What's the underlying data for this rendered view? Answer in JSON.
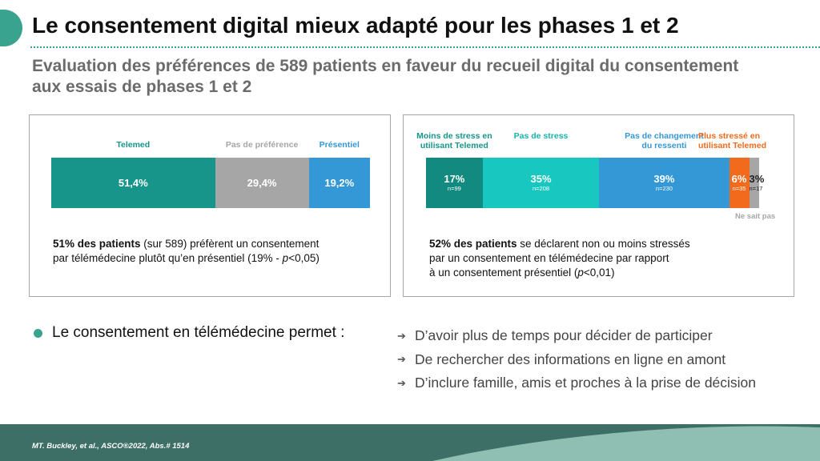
{
  "title": "Le consentement digital mieux adapté pour les phases 1 et 2",
  "subtitle_line1": "Evaluation des préférences de 589 patients en faveur du recueil digital du consentement",
  "subtitle_line2": "aux essais de phases 1 et 2",
  "left_panel": {
    "segments": [
      {
        "label": "Telemed",
        "value_label": "51,4%",
        "value": 51.4,
        "color": "#17958a",
        "label_color": "#17958a"
      },
      {
        "label": "Pas de préférence",
        "value_label": "29,4%",
        "value": 29.4,
        "color": "#a6a6a6",
        "label_color": "#a6a6a6"
      },
      {
        "label": "Présentiel",
        "value_label": "19,2%",
        "value": 19.2,
        "color": "#3598d6",
        "label_color": "#3598d6"
      }
    ],
    "text_bold": "51% des patients",
    "text_line1": " (sur 589) préfèrent un consentement",
    "text_line2_a": "par télémédecine plutôt qu’en présentiel (19% - ",
    "text_line2_p": "p",
    "text_line2_b": "<0,05)"
  },
  "right_panel": {
    "segments": [
      {
        "label_line1": "Moins de stress  en",
        "label_line2": "utilisant Telemed",
        "value_label": "17%",
        "n": "n=99",
        "value": 17,
        "color": "#138a80",
        "label_color": "#17958a"
      },
      {
        "label_line1": "Pas de stress",
        "label_line2": "",
        "value_label": "35%",
        "n": "n=208",
        "value": 35,
        "color": "#17c7c0",
        "label_color": "#17b2ab"
      },
      {
        "label_line1": "Pas de changement",
        "label_line2": "du ressenti",
        "value_label": "39%",
        "n": "n=230",
        "value": 39,
        "color": "#3598d6",
        "label_color": "#3598d6"
      },
      {
        "label_line1": "Plus stressé  en",
        "label_line2": "utilisant  Telemed",
        "value_label": "6%",
        "n": "n=35",
        "value": 6,
        "color": "#f26a1b",
        "label_color": "#f26a1b"
      },
      {
        "label_line1": "",
        "label_line2": "",
        "value_label": "3%",
        "n": "n=17",
        "value": 3,
        "color": "#a6a6a6",
        "label_color": "#a6a6a6"
      }
    ],
    "ne_sait_pas": "Ne sait pas",
    "text_bold": "52% des patients",
    "text_line1": " se déclarent non ou moins stressés",
    "text_line2": "par un consentement en télémédecine par rapport",
    "text_line3_a": "à un consentement présentiel (",
    "text_line3_p": "p",
    "text_line3_b": "<0,01)"
  },
  "bullet": "Le consentement en télémédecine permet :",
  "arrow_items": [
    "D’avoir plus de temps pour décider de participer",
    "De rechercher des informations en ligne en amont",
    "D’inclure famille, amis et proches à la prise de décision"
  ],
  "arrow_icon": "arrow-right-icon",
  "citation": "MT. Buckley, et al.,  ASCO®2022, Abs.# 1514",
  "colors": {
    "accent": "#3aa38f",
    "footer_dark": "#3d6f66",
    "footer_light": "#8fbfb3"
  }
}
